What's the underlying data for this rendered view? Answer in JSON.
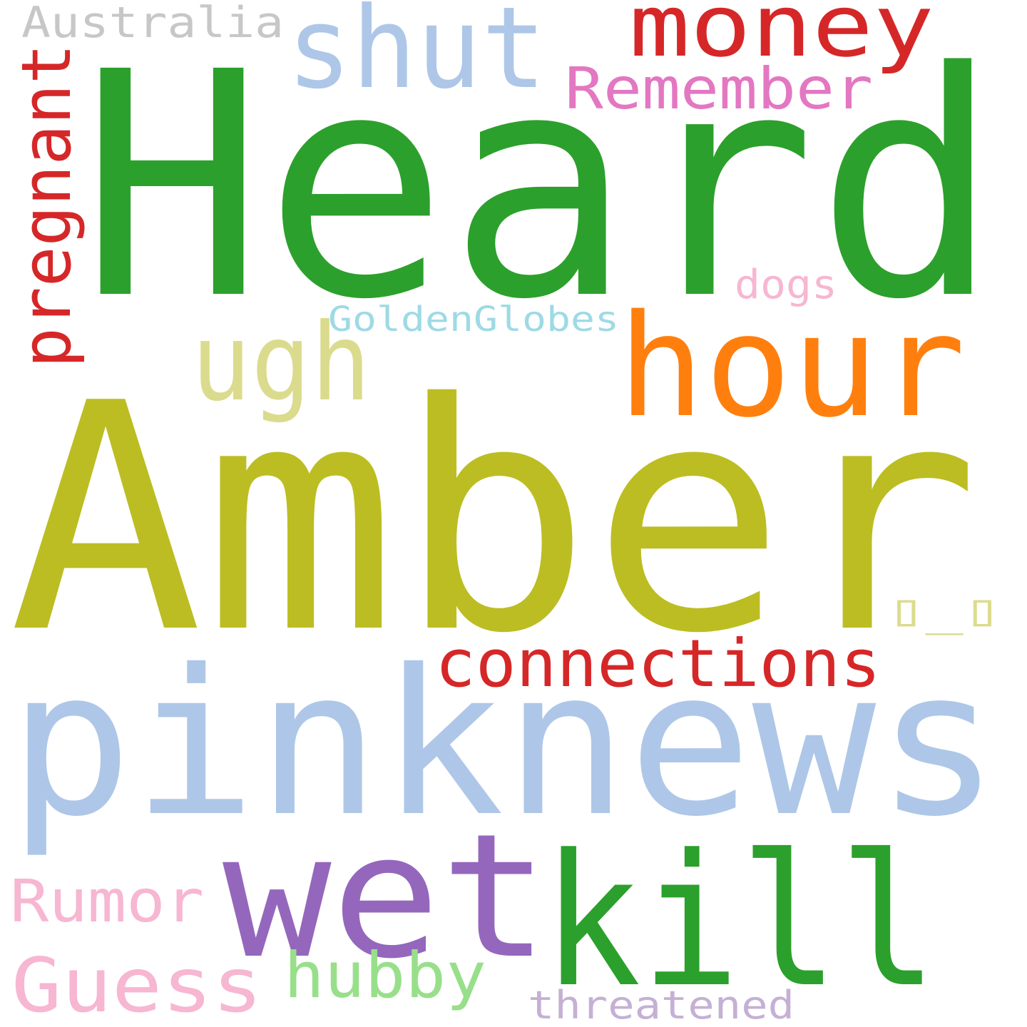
{
  "words": [
    {
      "text": "Heard",
      "color": "#2ca02c"
    },
    {
      "text": "Amber",
      "color": "#bcbd22"
    },
    {
      "text": "pinknews",
      "color": "#aec7e8"
    },
    {
      "text": "kill",
      "color": "#2ca02c"
    },
    {
      "text": "wet",
      "color": "#9467bd"
    },
    {
      "text": "hour",
      "color": "#ff7f0e"
    },
    {
      "text": "shut",
      "color": "#aec7e8"
    },
    {
      "text": "money",
      "color": "#d62728"
    },
    {
      "text": "ugh",
      "color": "#dbdb8d"
    },
    {
      "text": "pregnant",
      "color": "#d62728"
    },
    {
      "text": "connections",
      "color": "#d62728"
    },
    {
      "text": "Remember",
      "color": "#e377c2"
    },
    {
      "text": "Guess",
      "color": "#f7b6d2"
    },
    {
      "text": "Rumor",
      "color": "#f7b6d2"
    },
    {
      "text": "hubby",
      "color": "#98df8a"
    },
    {
      "text": "Australia",
      "color": "#c7c7c7"
    },
    {
      "text": "threatened",
      "color": "#c5b0d5"
    },
    {
      "text": "dogs",
      "color": "#f7b6d2"
    },
    {
      "text": "GoldenGlobes",
      "color": "#9edae5"
    },
    {
      "text": "▯_▯",
      "color": "#dbdb8d"
    }
  ]
}
